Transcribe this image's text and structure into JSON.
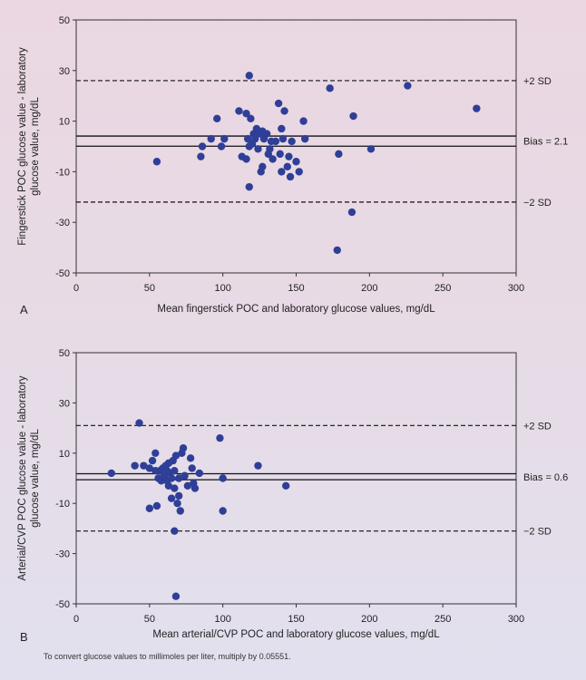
{
  "chart_data": [
    {
      "type": "scatter",
      "panel_label": "A",
      "xlabel": "Mean fingerstick POC and laboratory glucose values, mg/dL",
      "ylabel_line1": "Fingerstick POC glucose value - laboratory",
      "ylabel_line2": "glucose value, mg/dL",
      "xlim": [
        0,
        300
      ],
      "ylim": [
        -50,
        50
      ],
      "x_ticks": [
        0,
        50,
        100,
        150,
        200,
        250,
        300
      ],
      "y_ticks": [
        -50,
        -30,
        -10,
        10,
        30,
        50
      ],
      "bias": 2.1,
      "plus_2sd": 26,
      "minus_2sd": -22,
      "bias_label": "Bias = 2.1",
      "plus_label": "+2 SD",
      "minus_label": "−2 SD",
      "limit_offset": 2,
      "points": [
        [
          55,
          -6
        ],
        [
          85,
          -4
        ],
        [
          86,
          0
        ],
        [
          92,
          3
        ],
        [
          96,
          11
        ],
        [
          99,
          0
        ],
        [
          101,
          3
        ],
        [
          111,
          14
        ],
        [
          113,
          -4
        ],
        [
          116,
          -5
        ],
        [
          116,
          13
        ],
        [
          117,
          3
        ],
        [
          118,
          28
        ],
        [
          118,
          -16
        ],
        [
          118,
          0
        ],
        [
          119,
          11
        ],
        [
          120,
          1
        ],
        [
          121,
          5
        ],
        [
          122,
          3
        ],
        [
          123,
          7
        ],
        [
          124,
          -1
        ],
        [
          125,
          5
        ],
        [
          126,
          -10
        ],
        [
          127,
          6
        ],
        [
          127,
          -8
        ],
        [
          128,
          3
        ],
        [
          130,
          5
        ],
        [
          131,
          -3
        ],
        [
          132,
          -1
        ],
        [
          133,
          2
        ],
        [
          134,
          -5
        ],
        [
          136,
          2
        ],
        [
          138,
          17
        ],
        [
          139,
          -3
        ],
        [
          140,
          7
        ],
        [
          140,
          -10
        ],
        [
          141,
          3
        ],
        [
          142,
          14
        ],
        [
          144,
          -8
        ],
        [
          145,
          -4
        ],
        [
          146,
          -12
        ],
        [
          147,
          2
        ],
        [
          150,
          -6
        ],
        [
          152,
          -10
        ],
        [
          155,
          10
        ],
        [
          156,
          3
        ],
        [
          173,
          23
        ],
        [
          179,
          -3
        ],
        [
          178,
          -41
        ],
        [
          188,
          -26
        ],
        [
          189,
          12
        ],
        [
          201,
          -1
        ],
        [
          226,
          24
        ],
        [
          273,
          15
        ]
      ]
    },
    {
      "type": "scatter",
      "panel_label": "B",
      "xlabel": "Mean arterial/CVP POC and laboratory glucose values, mg/dL",
      "ylabel_line1": "Arterial/CVP POC glucose value - laboratory",
      "ylabel_line2": "glucose value, mg/dL",
      "xlim": [
        0,
        300
      ],
      "ylim": [
        -50,
        50
      ],
      "x_ticks": [
        0,
        50,
        100,
        150,
        200,
        250,
        300
      ],
      "y_ticks": [
        -50,
        -30,
        -10,
        10,
        30,
        50
      ],
      "bias": 0.6,
      "plus_2sd": 21,
      "minus_2sd": -21,
      "bias_label": "Bias = 0.6",
      "plus_label": "+2 SD",
      "minus_label": "−2 SD",
      "limit_offset": 1.2,
      "points": [
        [
          24,
          2
        ],
        [
          40,
          5
        ],
        [
          43,
          22
        ],
        [
          46,
          5
        ],
        [
          50,
          -12
        ],
        [
          50,
          4
        ],
        [
          52,
          7
        ],
        [
          54,
          3
        ],
        [
          54,
          10
        ],
        [
          55,
          -11
        ],
        [
          56,
          0
        ],
        [
          57,
          3
        ],
        [
          58,
          -1
        ],
        [
          59,
          4
        ],
        [
          60,
          1
        ],
        [
          61,
          5
        ],
        [
          62,
          3
        ],
        [
          62,
          -1
        ],
        [
          63,
          6
        ],
        [
          63,
          -3
        ],
        [
          64,
          2
        ],
        [
          65,
          0
        ],
        [
          65,
          -8
        ],
        [
          66,
          7
        ],
        [
          67,
          3
        ],
        [
          67,
          -4
        ],
        [
          67,
          -21
        ],
        [
          68,
          -47
        ],
        [
          68,
          9
        ],
        [
          69,
          -10
        ],
        [
          70,
          -7
        ],
        [
          70,
          0
        ],
        [
          71,
          -13
        ],
        [
          72,
          10
        ],
        [
          73,
          12
        ],
        [
          74,
          1
        ],
        [
          76,
          -3
        ],
        [
          78,
          8
        ],
        [
          79,
          4
        ],
        [
          80,
          -2
        ],
        [
          81,
          -4
        ],
        [
          84,
          2
        ],
        [
          98,
          16
        ],
        [
          100,
          0
        ],
        [
          100,
          -13
        ],
        [
          124,
          5
        ],
        [
          143,
          -3
        ]
      ]
    }
  ],
  "footnote": "To convert glucose values to millimoles per liter, multiply by 0.05551."
}
